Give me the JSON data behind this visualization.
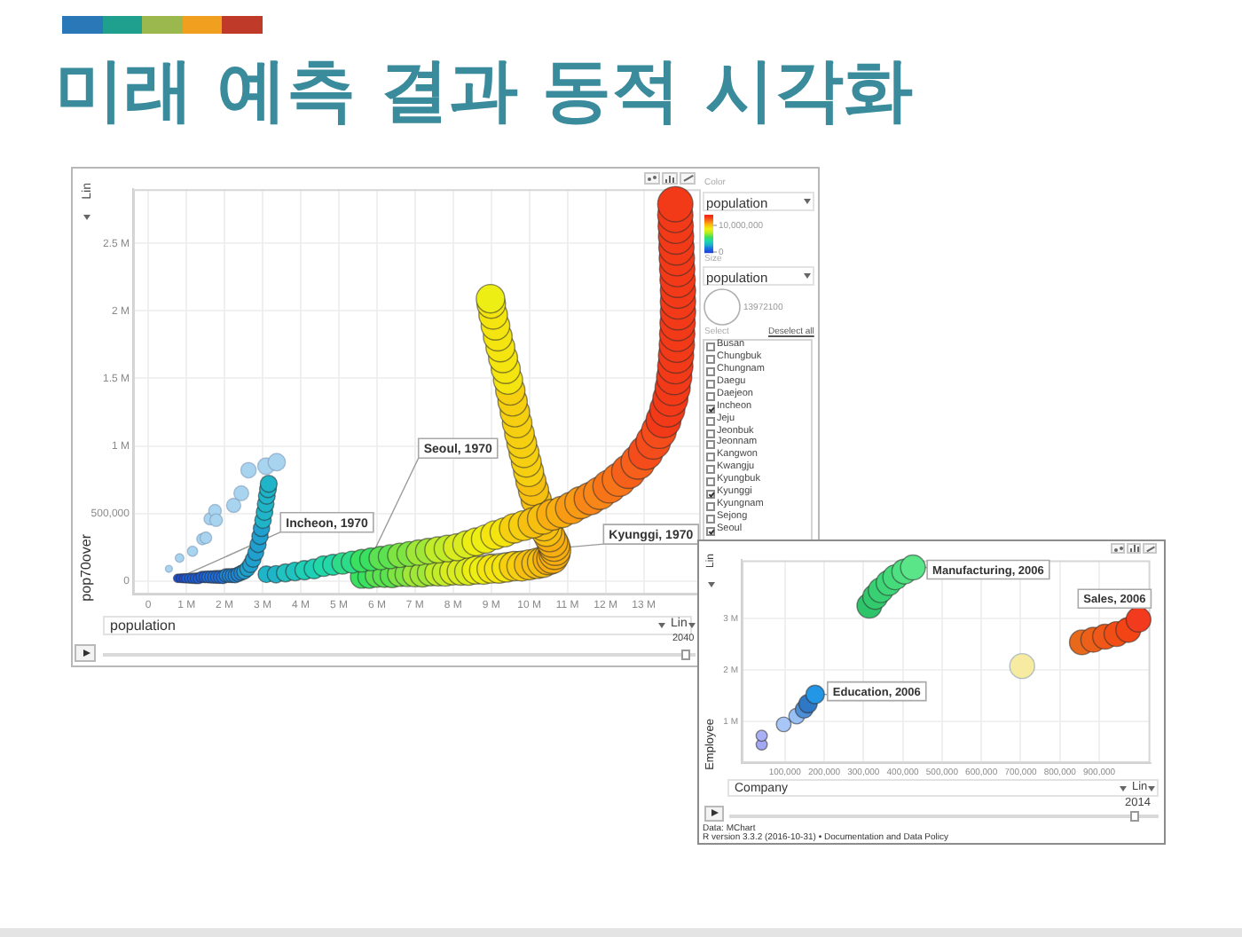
{
  "chart_data": [
    {
      "type": "bubble",
      "title": "미래 예측 결과 동적 시각화",
      "xlabel": "population",
      "ylabel": "pop70over",
      "clabel": "population",
      "xlim": [
        -400000,
        14500000
      ],
      "xticks": [
        0,
        {
          "value": 1000000,
          "label": "1 M"
        },
        {
          "value": 2000000,
          "label": "2 M"
        },
        {
          "value": 3000000,
          "label": "3 M"
        },
        {
          "value": 4000000,
          "label": "4 M"
        },
        {
          "value": 5000000,
          "label": "5 M"
        },
        {
          "value": 6000000,
          "label": "6 M"
        },
        {
          "value": 7000000,
          "label": "7 M"
        },
        {
          "value": 8000000,
          "label": "8 M"
        },
        {
          "value": 9000000,
          "label": "9 M"
        },
        {
          "value": 10000000,
          "label": "10 M"
        },
        {
          "value": 11000000,
          "label": "11 M"
        },
        {
          "value": 12000000,
          "label": "12 M"
        },
        {
          "value": 13000000,
          "label": "13 M"
        }
      ],
      "ylim": [
        -100000,
        2900000
      ],
      "yticks": [
        0,
        {
          "value": 500000,
          "label": "500,000"
        },
        {
          "value": 1000000,
          "label": "1 M"
        },
        {
          "value": 1500000,
          "label": "1.5 M"
        },
        {
          "value": 2000000,
          "label": "2 M"
        },
        {
          "value": 2500000,
          "label": "2.5 M"
        }
      ],
      "grid": true,
      "clim": [
        0,
        14000000
      ],
      "cticks": [
        0,
        {
          "value": 10000000,
          "label": "10,000,000"
        }
      ],
      "size_legend": [
        13972100
      ],
      "series": [
        {
          "color": "#a8d4f0",
          "x": [
            540000,
            820000,
            1160000,
            1420000,
            1510000,
            1620000,
            1750000,
            1780000,
            2240000,
            2440000,
            2630000,
            3090000,
            3370000
          ],
          "values": [
            90000,
            170000,
            220000,
            310000,
            320000,
            460000,
            520000,
            450000,
            560000,
            650000,
            820000,
            850000,
            880000
          ],
          "sizes": [
            540000,
            820000,
            1160000,
            1420000,
            1510000,
            1620000,
            1750000,
            1780000,
            2240000,
            2440000,
            2630000,
            3090000,
            3370000
          ]
        },
        {
          "x": [
            5600000,
            5800000,
            6000000,
            6200000,
            6400000,
            6600000,
            6800000,
            7000000,
            7200000,
            7400000,
            7600000,
            7800000,
            8000000,
            8200000,
            8400000,
            8600000,
            8800000,
            9000000,
            9200000,
            9400000,
            9600000,
            9800000,
            10000000,
            10200000,
            10350000,
            10500000,
            10600000,
            10660000,
            10680000,
            10650000,
            10600000,
            10530000,
            10450000,
            10380000,
            10180000,
            10110000,
            10040000,
            9980000,
            9920000,
            9860000,
            9800000,
            9740000,
            9680000,
            9620000,
            9560000,
            9500000,
            9440000,
            9380000,
            9310000,
            9240000,
            9170000,
            9110000,
            9050000,
            9000000,
            8980000
          ],
          "values": [
            30000,
            30000,
            40000,
            40000,
            40000,
            50000,
            50000,
            50000,
            50000,
            60000,
            60000,
            60000,
            70000,
            70000,
            70000,
            80000,
            80000,
            90000,
            90000,
            100000,
            110000,
            110000,
            120000,
            130000,
            140000,
            160000,
            170000,
            200000,
            230000,
            260000,
            290000,
            330000,
            370000,
            410000,
            600000,
            670000,
            740000,
            810000,
            880000,
            950000,
            1020000,
            1090000,
            1170000,
            1250000,
            1330000,
            1410000,
            1490000,
            1570000,
            1650000,
            1730000,
            1810000,
            1890000,
            1970000,
            2050000,
            2090000
          ],
          "sizes": [
            5600000,
            5800000,
            6000000,
            6200000,
            6400000,
            6600000,
            6800000,
            7000000,
            7200000,
            7400000,
            7600000,
            7800000,
            8000000,
            8200000,
            8400000,
            8600000,
            8800000,
            9000000,
            9200000,
            9400000,
            9600000,
            9800000,
            10000000,
            10200000,
            10350000,
            10500000,
            10600000,
            10660000,
            10680000,
            10650000,
            10600000,
            10530000,
            10450000,
            10380000,
            10180000,
            10110000,
            10040000,
            9980000,
            9920000,
            9860000,
            9800000,
            9740000,
            9680000,
            9620000,
            9560000,
            9500000,
            9440000,
            9380000,
            9310000,
            9240000,
            9170000,
            9110000,
            9050000,
            9000000,
            8980000
          ],
          "colors": [
            "#3ae060",
            "#3ae060",
            "#5ae250",
            "#5ae250",
            "#5ae250",
            "#7ee444",
            "#7ee444",
            "#a0e838",
            "#a0e838",
            "#a0e838",
            "#c0ec2a",
            "#c0ec2a",
            "#d8ec20",
            "#d8ec20",
            "#d8ec20",
            "#ecee14",
            "#ecee14",
            "#f4e410",
            "#f4e410",
            "#f4e410",
            "#f6d010",
            "#f6d010",
            "#f7c010",
            "#f7c010",
            "#f7c010",
            "#f8ae10",
            "#f8ae10",
            "#f8ae10",
            "#f8ae10",
            "#f8ae10",
            "#f8ae10",
            "#f8ae10",
            "#f7c010",
            "#f7c010",
            "#f7c010",
            "#f7c010",
            "#f7c010",
            "#f6d010",
            "#f6d010",
            "#f6d010",
            "#f6d010",
            "#f6d010",
            "#f6d010",
            "#f6d010",
            "#f6d010",
            "#f6d010",
            "#f4e410",
            "#f4e410",
            "#f4e410",
            "#f4e410",
            "#f4e410",
            "#f4e410",
            "#f4e410",
            "#f4e410",
            "#ecee14"
          ]
        },
        {
          "x": [
            3100000,
            3350000,
            3600000,
            3850000,
            4100000,
            4350000,
            4600000,
            4850000,
            5100000,
            5350000,
            5600000,
            5850000,
            6100000,
            6350000,
            6600000,
            6850000,
            7100000,
            7350000,
            7600000,
            7850000,
            8100000,
            8350000,
            8600000,
            8850000,
            9100000,
            9350000,
            9600000,
            9850000,
            10100000,
            10350000,
            10600000,
            10850000,
            11100000,
            11350000,
            11600000,
            11850000,
            12100000,
            12350000,
            12600000,
            12850000,
            13050000,
            13250000,
            13400000,
            13520000,
            13620000,
            13700000,
            13760000,
            13800000,
            13830000,
            13850000,
            13870000,
            13880000,
            13890000,
            13900000,
            13900000,
            13900000,
            13890000,
            13880000,
            13870000,
            13860000,
            13850000,
            13840000,
            13830000,
            13830000
          ],
          "values": [
            50000,
            50000,
            60000,
            70000,
            80000,
            90000,
            110000,
            120000,
            130000,
            140000,
            150000,
            160000,
            170000,
            180000,
            190000,
            200000,
            210000,
            220000,
            230000,
            240000,
            250000,
            270000,
            290000,
            310000,
            340000,
            360000,
            390000,
            410000,
            430000,
            460000,
            490000,
            510000,
            540000,
            580000,
            610000,
            650000,
            700000,
            750000,
            810000,
            880000,
            950000,
            1030000,
            1110000,
            1190000,
            1270000,
            1350000,
            1430000,
            1510000,
            1590000,
            1670000,
            1750000,
            1830000,
            1910000,
            1990000,
            2070000,
            2150000,
            2230000,
            2310000,
            2390000,
            2470000,
            2550000,
            2630000,
            2710000,
            2790000
          ],
          "sizes": [
            3100000,
            3350000,
            3600000,
            3850000,
            4100000,
            4350000,
            4600000,
            4850000,
            5100000,
            5350000,
            5600000,
            5850000,
            6100000,
            6350000,
            6600000,
            6850000,
            7100000,
            7350000,
            7600000,
            7850000,
            8100000,
            8350000,
            8600000,
            8850000,
            9100000,
            9350000,
            9600000,
            9850000,
            10100000,
            10350000,
            10600000,
            10850000,
            11100000,
            11350000,
            11600000,
            11850000,
            12100000,
            12350000,
            12600000,
            12850000,
            13050000,
            13250000,
            13400000,
            13520000,
            13620000,
            13700000,
            13760000,
            13800000,
            13830000,
            13850000,
            13870000,
            13880000,
            13890000,
            13900000,
            13900000,
            13900000,
            13890000,
            13880000,
            13870000,
            13860000,
            13850000,
            13840000,
            13830000,
            13830000
          ],
          "colors": [
            "#1fb4c8",
            "#1fb4c8",
            "#1fc4c0",
            "#1fc4c0",
            "#1fd0b6",
            "#1fd0b6",
            "#22d8a8",
            "#22d8a8",
            "#2ddc88",
            "#2ddc88",
            "#3ae060",
            "#3ae060",
            "#5ae250",
            "#5ae250",
            "#7ee444",
            "#7ee444",
            "#a0e838",
            "#a0e838",
            "#c0ec2a",
            "#c0ec2a",
            "#d8ec20",
            "#d8ec20",
            "#ecee14",
            "#ecee14",
            "#f4e410",
            "#f4e410",
            "#f6d010",
            "#f6d010",
            "#f7c010",
            "#f7c010",
            "#f8ae10",
            "#f8ae10",
            "#f89a14",
            "#f89a14",
            "#f88618",
            "#f88618",
            "#f87418",
            "#f87418",
            "#f6601a",
            "#f6601a",
            "#f44c1a",
            "#f44c1a",
            "#f44c1a",
            "#f23a18",
            "#f23a18",
            "#f23a18",
            "#f23a18",
            "#f23a18",
            "#f23a18",
            "#f23a18",
            "#f23a18",
            "#f23a18",
            "#f23a18",
            "#f23a18",
            "#f23a18",
            "#f23a18",
            "#f23a18",
            "#f23a18",
            "#f23a18",
            "#f23a18",
            "#f23a18",
            "#f23a18",
            "#f23a18",
            "#f23a18"
          ]
        },
        {
          "x": [
            770000,
            850000,
            930000,
            1000000,
            1080000,
            1160000,
            1240000,
            1320000,
            1400000,
            1480000,
            1560000,
            1640000,
            1720000,
            1800000,
            1880000,
            1960000,
            2040000,
            2120000,
            2200000,
            2280000,
            2360000,
            2440000,
            2520000,
            2600000,
            2680000,
            2750000,
            2820000,
            2880000,
            2930000,
            2970000,
            3010000,
            3050000,
            3080000,
            3110000,
            3140000,
            3160000
          ],
          "values": [
            20000,
            20000,
            20000,
            20000,
            20000,
            20000,
            20000,
            20000,
            30000,
            30000,
            30000,
            30000,
            30000,
            30000,
            30000,
            30000,
            40000,
            40000,
            40000,
            40000,
            50000,
            60000,
            70000,
            90000,
            120000,
            160000,
            210000,
            270000,
            330000,
            390000,
            450000,
            510000,
            570000,
            630000,
            680000,
            720000
          ],
          "sizes": [
            770000,
            850000,
            930000,
            1000000,
            1080000,
            1160000,
            1240000,
            1320000,
            1400000,
            1480000,
            1560000,
            1640000,
            1720000,
            1800000,
            1880000,
            1960000,
            2040000,
            2120000,
            2200000,
            2280000,
            2360000,
            2440000,
            2520000,
            2600000,
            2680000,
            2750000,
            2820000,
            2880000,
            2930000,
            2970000,
            3010000,
            3050000,
            3080000,
            3110000,
            3140000,
            3160000
          ],
          "colors": [
            "#1e50dc",
            "#1e50dc",
            "#1e50dc",
            "#1f60e0",
            "#1f60e0",
            "#1f60e0",
            "#1f60e0",
            "#1f60e0",
            "#1f60e0",
            "#1f60e0",
            "#1f70e0",
            "#1f70e0",
            "#1f70e0",
            "#1f70e0",
            "#1f70e0",
            "#1f70e0",
            "#1f88d8",
            "#1f88d8",
            "#1f88d8",
            "#1f88d8",
            "#1f88d8",
            "#1f88d8",
            "#1fa0cf",
            "#1fa0cf",
            "#1fa0cf",
            "#1fa0cf",
            "#1fa0cf",
            "#1fa0cf",
            "#1fa0cf",
            "#1fa0cf",
            "#1fb4c8",
            "#1fb4c8",
            "#1fb4c8",
            "#1fb4c8",
            "#1fb4c8",
            "#1fb4c8"
          ]
        }
      ],
      "annotations": [
        {
          "text": "Incheon, 1970",
          "x": 770000,
          "y": 20000
        },
        {
          "text": "Seoul, 1970",
          "x": 5600000,
          "y": 30000
        },
        {
          "text": "Kyunggi, 1970",
          "x": 3100000,
          "y": 50000
        },
        "Lin",
        "Lin",
        "2040",
        "Color",
        "Size",
        "population",
        "Select",
        "Deselect all",
        "Busan",
        "Chungbuk",
        "Chungnam",
        "Daegu",
        "Daejeon",
        "Incheon",
        "Jeju",
        "Jeonbuk",
        "Jeonnam",
        "Kangwon",
        "Kwangju",
        "Kyungbuk",
        "Kyunggi",
        "Kyungnam",
        "Sejong",
        "Seoul"
      ]
    },
    {
      "type": "bubble",
      "xlabel": "Company",
      "ylabel": "Employee",
      "xlim": [
        -10000,
        1030000
      ],
      "xticks": [
        {
          "value": 100000,
          "label": "100,000"
        },
        {
          "value": 200000,
          "label": "200,000"
        },
        {
          "value": 300000,
          "label": "300,000"
        },
        {
          "value": 400000,
          "label": "400,000"
        },
        {
          "value": 500000,
          "label": "500,000"
        },
        {
          "value": 600000,
          "label": "600,000"
        },
        {
          "value": 700000,
          "label": "700,000"
        },
        {
          "value": 800000,
          "label": "800,000"
        },
        {
          "value": 900000,
          "label": "900,000"
        }
      ],
      "ylim": [
        200000,
        4130000
      ],
      "yticks": [
        {
          "value": 1000000,
          "label": "1 M"
        },
        {
          "value": 2000000,
          "label": "2 M"
        },
        {
          "value": 3000000,
          "label": "3 M"
        }
      ],
      "grid": true,
      "series": [
        {
          "color": "#f7eba2",
          "x": [
            704000
          ],
          "values": [
            2080000
          ],
          "sizes": [
            1
          ]
        },
        {
          "x": [
            41000,
            41000,
            97000,
            130000,
            149000,
            159000,
            177000
          ],
          "values": [
            560000,
            730000,
            950000,
            1110000,
            1240000,
            1350000,
            1530000
          ],
          "sizes": [
            0.2,
            0.2,
            0.35,
            0.4,
            0.5,
            0.55,
            0.55
          ],
          "colors": [
            "#a4a8f4",
            "#a9b0f6",
            "#a8c6f8",
            "#98c0f4",
            "#4d8fd6",
            "#2f78c6",
            "#2496e6"
          ]
        },
        {
          "x": [
            315000,
            330000,
            344000,
            364000,
            381000,
            404000,
            426000
          ],
          "values": [
            3250000,
            3420000,
            3550000,
            3690000,
            3800000,
            3910000,
            3990000
          ],
          "sizes": [
            1,
            1,
            1,
            1,
            1,
            1,
            1
          ],
          "colors": [
            "#2ec46a",
            "#33ca6e",
            "#38d072",
            "#3ed677",
            "#45db7b",
            "#4fe181",
            "#5ae688"
          ]
        },
        {
          "x": [
            856000,
            885000,
            915000,
            944000,
            974000,
            1000000
          ],
          "values": [
            2540000,
            2590000,
            2650000,
            2700000,
            2780000,
            2980000
          ],
          "sizes": [
            1,
            1,
            1,
            1,
            1,
            1
          ],
          "colors": [
            "#e8681c",
            "#ec601a",
            "#ef5818",
            "#f14e16",
            "#f24414",
            "#f23a1e"
          ]
        }
      ],
      "annotations": [
        {
          "text": "Education, 2006",
          "x": 177000,
          "y": 1530000
        },
        {
          "text": "Manufacturing, 2006",
          "x": 426000,
          "y": 3990000
        },
        {
          "text": "Sales, 2006",
          "x": 1000000,
          "y": 2980000
        },
        "Lin",
        "Lin",
        "2014",
        "Data: MChart",
        "R version 3.3.2 (2016-10-31) • Documentation and Data Policy"
      ]
    }
  ]
}
